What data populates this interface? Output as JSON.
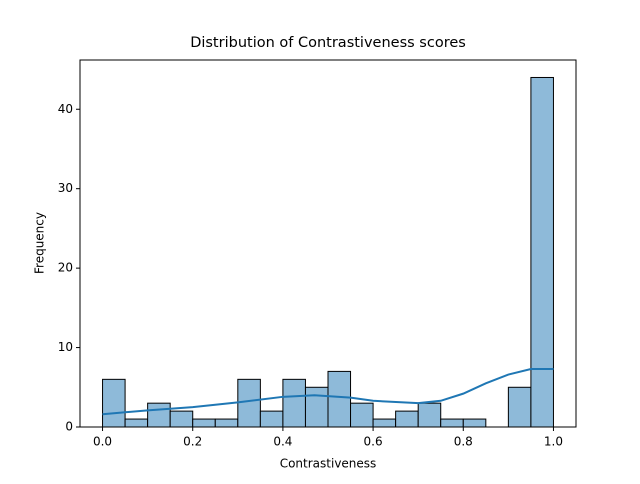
{
  "chart_data": {
    "type": "histogram",
    "title": "Distribution of Contrastiveness scores",
    "xlabel": "Contrastiveness",
    "ylabel": "Frequency",
    "bins": [
      0,
      0.05,
      0.1,
      0.15,
      0.2,
      0.25,
      0.3,
      0.35,
      0.4,
      0.45,
      0.5,
      0.55,
      0.6,
      0.65,
      0.7,
      0.75,
      0.8,
      0.85,
      0.9,
      0.95,
      1.0
    ],
    "values": [
      6,
      1,
      3,
      2,
      1,
      1,
      6,
      2,
      6,
      5,
      7,
      3,
      1,
      2,
      3,
      1,
      1,
      0,
      5,
      44
    ],
    "color": "#8ebad9",
    "edgecolor": "#000000",
    "kde": {
      "color": "#1f77b4",
      "x": [
        0,
        0.1,
        0.2,
        0.3,
        0.4,
        0.47,
        0.55,
        0.6,
        0.7,
        0.75,
        0.8,
        0.85,
        0.9,
        0.95,
        1.0
      ],
      "values": [
        1.6,
        2.1,
        2.5,
        3.1,
        3.8,
        4.0,
        3.7,
        3.3,
        3.0,
        3.3,
        4.2,
        5.5,
        6.6,
        7.3,
        7.3
      ]
    },
    "xlim": [
      -0.05,
      1.05
    ],
    "xticks": [
      {
        "value": 0,
        "label": "0.0"
      },
      0.2,
      0.4,
      0.6,
      0.8,
      {
        "value": 1.0,
        "label": "1.0"
      }
    ],
    "ylim": [
      0,
      46.2
    ],
    "yticks": [
      0,
      10,
      20,
      30,
      40
    ],
    "grid": false
  }
}
